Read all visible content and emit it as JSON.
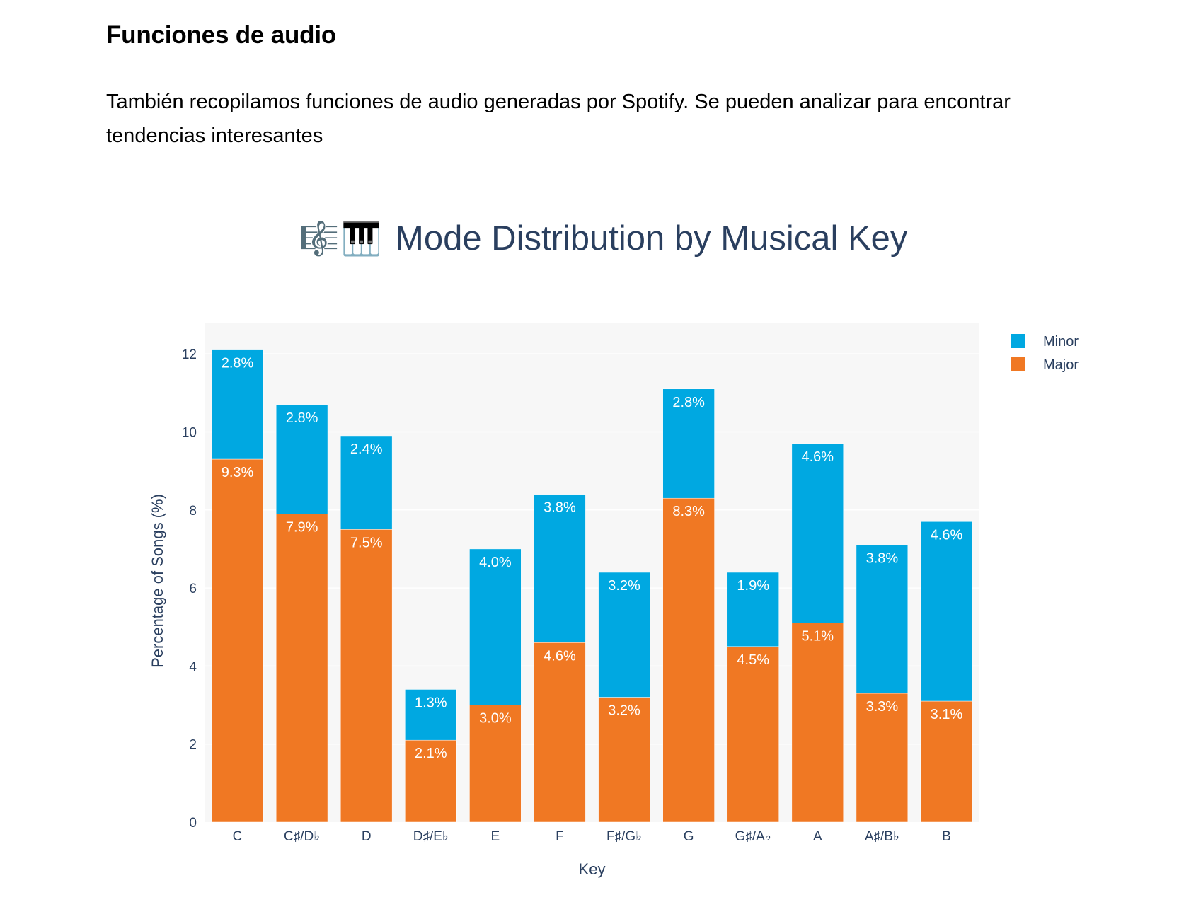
{
  "section": {
    "title": "Funciones de audio",
    "description": "También recopilamos funciones de audio generadas por Spotify. Se pueden analizar para encontrar tendencias interesantes"
  },
  "chart_data": {
    "type": "bar",
    "barmode": "stack",
    "title": "🎼🎹 Mode Distribution by Musical Key",
    "title_icons": [
      "musical-score-icon",
      "musical-keyboard-icon"
    ],
    "title_text": "Mode Distribution by Musical Key",
    "xlabel": "Key",
    "ylabel": "Percentage of Songs (%)",
    "ylim": [
      0,
      12.8
    ],
    "yticks": [
      0,
      2,
      4,
      6,
      8,
      10,
      12
    ],
    "grid": true,
    "legend_position": "top-right",
    "categories": [
      "C",
      "C♯/D♭",
      "D",
      "D♯/E♭",
      "E",
      "F",
      "F♯/G♭",
      "G",
      "G♯/A♭",
      "A",
      "A♯/B♭",
      "B"
    ],
    "series": [
      {
        "name": "Major",
        "color": "#f07823",
        "values": [
          9.3,
          7.9,
          7.5,
          2.1,
          3.0,
          4.6,
          3.2,
          8.3,
          4.5,
          5.1,
          3.3,
          3.1
        ],
        "labels": [
          "9.3%",
          "7.9%",
          "7.5%",
          "2.1%",
          "3.0%",
          "4.6%",
          "3.2%",
          "8.3%",
          "4.5%",
          "5.1%",
          "3.3%",
          "3.1%"
        ]
      },
      {
        "name": "Minor",
        "color": "#00a8e1",
        "values": [
          2.8,
          2.8,
          2.4,
          1.3,
          4.0,
          3.8,
          3.2,
          2.8,
          1.9,
          4.6,
          3.8,
          4.6
        ],
        "labels": [
          "2.8%",
          "2.8%",
          "2.4%",
          "1.3%",
          "4.0%",
          "3.8%",
          "3.2%",
          "2.8%",
          "1.9%",
          "4.6%",
          "3.8%",
          "4.6%"
        ]
      }
    ],
    "legend_order": [
      "Minor",
      "Major"
    ],
    "colors": {
      "plot_background": "#f7f7f7",
      "grid": "#ffffff",
      "axis_text": "#2a3f5f",
      "bar_label": "#ffffff"
    }
  }
}
